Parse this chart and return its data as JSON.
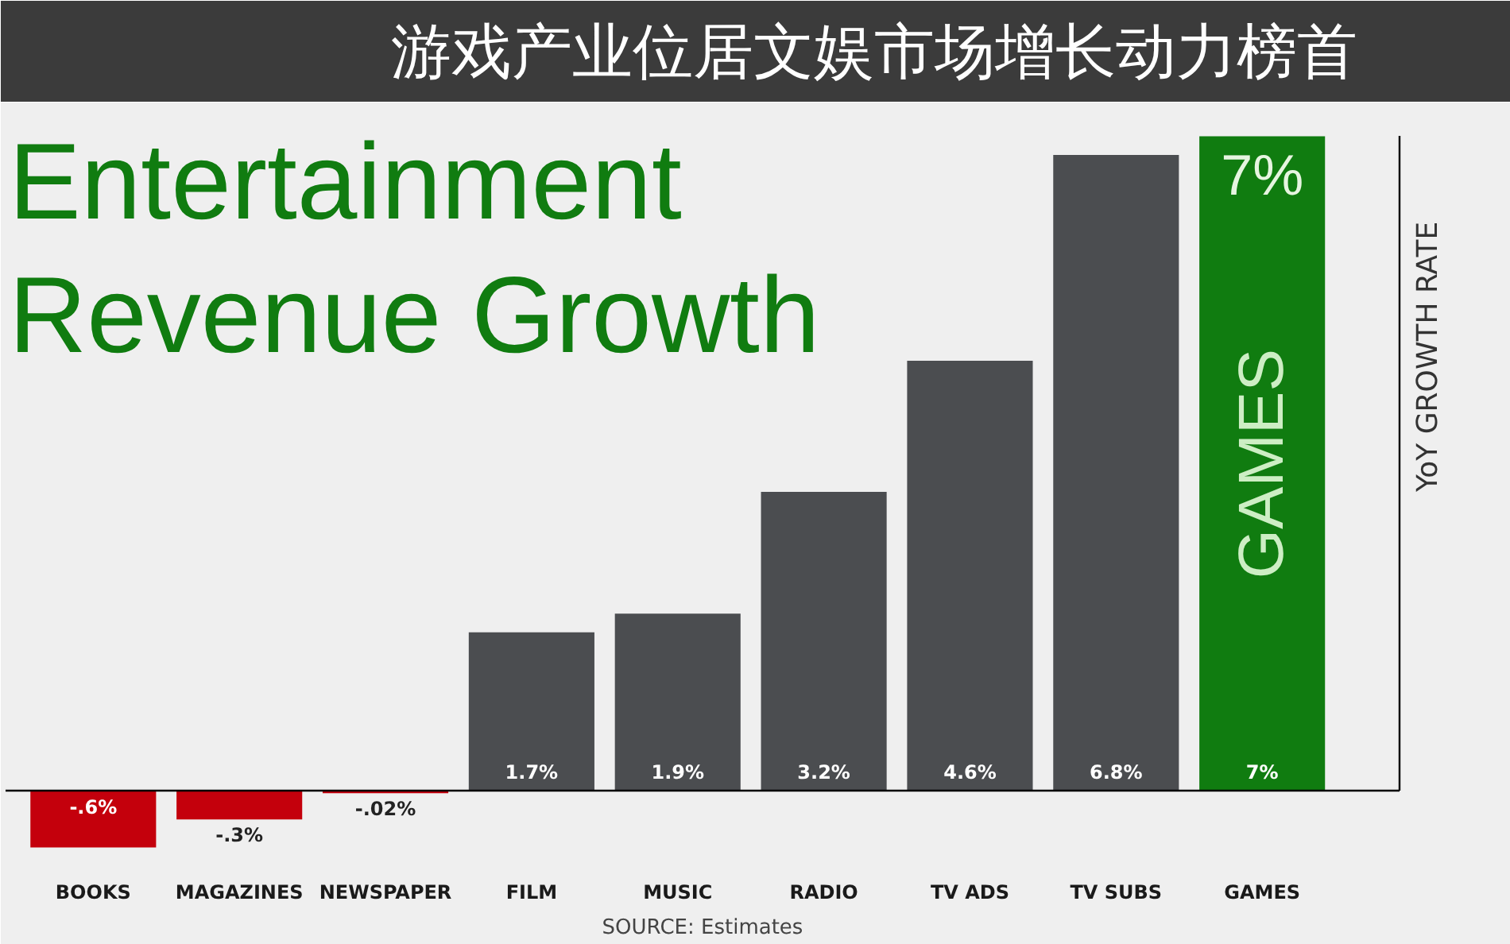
{
  "chart_data": {
    "type": "bar",
    "title": "游戏产业位居文娱市场增长动力榜首",
    "subtitle": "Entertainment Revenue Growth",
    "ylabel": "YoY GROWTH RATE",
    "categories": [
      "BOOKS",
      "MAGAZINES",
      "NEWSPAPER",
      "FILM",
      "MUSIC",
      "RADIO",
      "TV ADS",
      "TV SUBS",
      "GAMES"
    ],
    "values": [
      -0.6,
      -0.3,
      -0.02,
      1.7,
      1.9,
      3.2,
      4.6,
      6.8,
      7
    ],
    "colors": [
      "#c4000c",
      "#c4000c",
      "#c4000c",
      "#4b4d50",
      "#4b4d50",
      "#4b4d50",
      "#4b4d50",
      "#4b4d50",
      "#107c10"
    ],
    "value_labels": [
      "-.6%",
      "-.3%",
      "-.02%",
      "1.7%",
      "1.9%",
      "3.2%",
      "4.6%",
      "6.8%",
      "7%"
    ],
    "annotations": [
      "7%",
      "GAMES",
      "SOURCE: Estimates"
    ]
  }
}
